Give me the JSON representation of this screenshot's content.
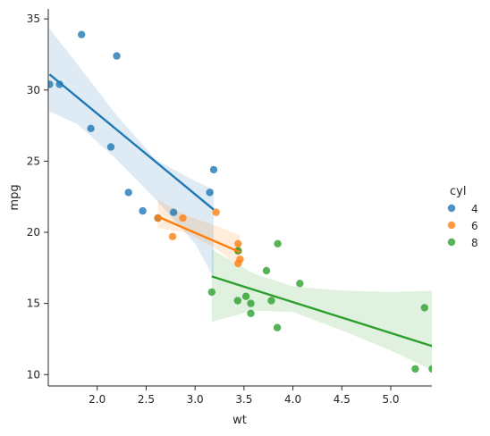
{
  "chart_data": {
    "type": "scatter",
    "title": "",
    "xlabel": "wt",
    "ylabel": "mpg",
    "xlim": [
      1.5,
      5.42
    ],
    "ylim": [
      9.2,
      35.7
    ],
    "xticks": [
      "2.0",
      "2.5",
      "3.0",
      "3.5",
      "4.0",
      "4.5",
      "5.0"
    ],
    "yticks": [
      "10",
      "15",
      "20",
      "25",
      "30",
      "35"
    ],
    "grid": false,
    "legend": {
      "title": "cyl",
      "placement": "right"
    },
    "series": [
      {
        "name": "4",
        "color": "#1f77b4",
        "points": [
          [
            2.62,
            21.0
          ],
          [
            1.84,
            33.9
          ],
          [
            2.2,
            32.4
          ],
          [
            1.615,
            30.4
          ],
          [
            1.513,
            30.4
          ],
          [
            1.935,
            27.3
          ],
          [
            2.14,
            26.0
          ],
          [
            2.32,
            22.8
          ],
          [
            3.19,
            24.4
          ],
          [
            3.15,
            22.8
          ],
          [
            2.465,
            21.5
          ],
          [
            2.78,
            21.4
          ]
        ],
        "fit": {
          "x": [
            1.513,
            3.19
          ],
          "y": [
            31.1,
            21.6
          ]
        },
        "ci": {
          "x": [
            1.513,
            1.8,
            2.2,
            2.6,
            3.0,
            3.19
          ],
          "lower": [
            28.5,
            27.6,
            25.1,
            22.3,
            19.2,
            16.8
          ],
          "upper": [
            34.3,
            31.8,
            28.2,
            25.1,
            23.6,
            23.0
          ]
        }
      },
      {
        "name": "6",
        "color": "#ff7f0e",
        "points": [
          [
            2.62,
            21.0
          ],
          [
            2.875,
            21.0
          ],
          [
            3.215,
            21.4
          ],
          [
            3.44,
            18.7
          ],
          [
            3.46,
            18.1
          ],
          [
            3.44,
            19.2
          ],
          [
            3.44,
            17.8
          ],
          [
            2.77,
            19.7
          ]
        ],
        "fit": {
          "x": [
            2.62,
            3.46
          ],
          "y": [
            21.1,
            18.6
          ]
        },
        "ci": {
          "x": [
            2.62,
            2.9,
            3.2,
            3.46
          ],
          "lower": [
            20.3,
            20.0,
            18.9,
            17.6
          ],
          "upper": [
            22.3,
            21.2,
            20.5,
            19.8
          ]
        }
      },
      {
        "name": "8",
        "color": "#2ca02c",
        "points": [
          [
            3.44,
            18.7
          ],
          [
            3.57,
            14.3
          ],
          [
            4.07,
            16.4
          ],
          [
            3.73,
            17.3
          ],
          [
            3.78,
            15.2
          ],
          [
            5.25,
            10.4
          ],
          [
            5.424,
            10.4
          ],
          [
            5.345,
            14.7
          ],
          [
            3.52,
            15.5
          ],
          [
            3.435,
            15.2
          ],
          [
            3.84,
            13.3
          ],
          [
            3.845,
            19.2
          ],
          [
            3.17,
            15.8
          ],
          [
            3.57,
            15.0
          ]
        ],
        "fit": {
          "x": [
            3.17,
            5.424
          ],
          "y": [
            16.9,
            12.0
          ]
        },
        "ci": {
          "x": [
            3.17,
            3.6,
            4.0,
            4.5,
            5.0,
            5.424
          ],
          "lower": [
            13.7,
            14.5,
            14.4,
            13.1,
            11.7,
            10.3
          ],
          "upper": [
            18.8,
            17.1,
            16.2,
            15.9,
            15.8,
            15.9
          ]
        }
      }
    ]
  }
}
